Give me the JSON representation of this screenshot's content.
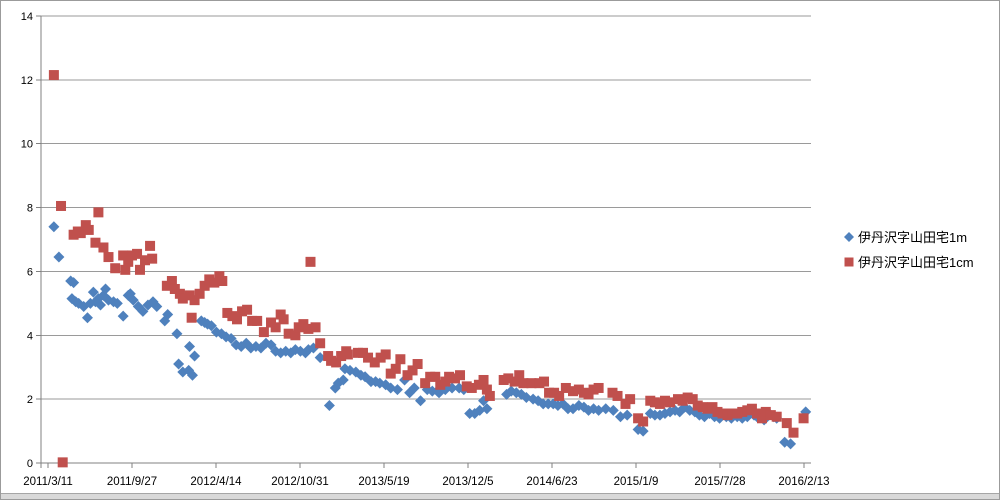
{
  "chart_data": {
    "type": "scatter",
    "title": "",
    "x_axis": {
      "unit": "date",
      "tick_interval_days": 200,
      "tick_labels": [
        "2011/3/11",
        "2011/9/27",
        "2012/4/14",
        "2012/10/31",
        "2013/5/19",
        "2013/12/5",
        "2014/6/23",
        "2015/1/9",
        "2015/7/28",
        "2016/2/13"
      ]
    },
    "y_axis": {
      "min": 0,
      "max": 14,
      "step": 2,
      "tick_labels": [
        "0",
        "2",
        "4",
        "6",
        "8",
        "10",
        "12",
        "14"
      ]
    },
    "grid": true,
    "gridline_color": "#9a9a9a",
    "axis_color": "#808080",
    "text_color": "#000000",
    "background": "#ffffff",
    "legend": {
      "position": "right"
    },
    "series": [
      {
        "name": "伊丹沢字山田宅1m",
        "marker": "diamond",
        "color": "#4F81BD",
        "points": [
          [
            14,
            7.4
          ],
          [
            26,
            6.45
          ],
          [
            54,
            5.7
          ],
          [
            57,
            5.15
          ],
          [
            61,
            5.65
          ],
          [
            66,
            5.05
          ],
          [
            73,
            5.0
          ],
          [
            85,
            4.9
          ],
          [
            94,
            4.55
          ],
          [
            101,
            5.0
          ],
          [
            108,
            5.35
          ],
          [
            113,
            5.05
          ],
          [
            120,
            5.15
          ],
          [
            125,
            4.95
          ],
          [
            132,
            5.25
          ],
          [
            137,
            5.45
          ],
          [
            144,
            5.1
          ],
          [
            156,
            5.05
          ],
          [
            165,
            5.0
          ],
          [
            179,
            4.6
          ],
          [
            191,
            5.25
          ],
          [
            196,
            5.3
          ],
          [
            203,
            5.1
          ],
          [
            215,
            4.9
          ],
          [
            226,
            4.75
          ],
          [
            238,
            4.95
          ],
          [
            250,
            5.05
          ],
          [
            259,
            4.9
          ],
          [
            278,
            4.45
          ],
          [
            285,
            4.65
          ],
          [
            307,
            4.05
          ],
          [
            311,
            3.1
          ],
          [
            321,
            2.85
          ],
          [
            335,
            2.9
          ],
          [
            337,
            3.65
          ],
          [
            344,
            2.75
          ],
          [
            349,
            3.35
          ],
          [
            365,
            4.45
          ],
          [
            373,
            4.4
          ],
          [
            380,
            4.35
          ],
          [
            389,
            4.3
          ],
          [
            401,
            4.1
          ],
          [
            413,
            4.05
          ],
          [
            424,
            3.95
          ],
          [
            436,
            3.9
          ],
          [
            448,
            3.7
          ],
          [
            460,
            3.65
          ],
          [
            472,
            3.75
          ],
          [
            483,
            3.6
          ],
          [
            495,
            3.65
          ],
          [
            507,
            3.6
          ],
          [
            519,
            3.75
          ],
          [
            531,
            3.7
          ],
          [
            542,
            3.5
          ],
          [
            554,
            3.45
          ],
          [
            566,
            3.5
          ],
          [
            578,
            3.45
          ],
          [
            589,
            3.55
          ],
          [
            601,
            3.5
          ],
          [
            613,
            3.45
          ],
          [
            620,
            3.55
          ],
          [
            632,
            3.6
          ],
          [
            648,
            3.3
          ],
          [
            670,
            1.8
          ],
          [
            684,
            2.35
          ],
          [
            691,
            2.5
          ],
          [
            703,
            2.6
          ],
          [
            707,
            2.95
          ],
          [
            719,
            2.9
          ],
          [
            733,
            2.85
          ],
          [
            745,
            2.75
          ],
          [
            755,
            2.7
          ],
          [
            769,
            2.55
          ],
          [
            780,
            2.55
          ],
          [
            790,
            2.5
          ],
          [
            804,
            2.45
          ],
          [
            816,
            2.35
          ],
          [
            832,
            2.3
          ],
          [
            849,
            2.6
          ],
          [
            861,
            2.2
          ],
          [
            872,
            2.35
          ],
          [
            887,
            1.95
          ],
          [
            903,
            2.3
          ],
          [
            915,
            2.25
          ],
          [
            927,
            2.25
          ],
          [
            931,
            2.2
          ],
          [
            946,
            2.3
          ],
          [
            962,
            2.35
          ],
          [
            979,
            2.35
          ],
          [
            990,
            2.3
          ],
          [
            1004,
            1.55
          ],
          [
            1016,
            1.55
          ],
          [
            1028,
            1.65
          ],
          [
            1037,
            1.95
          ],
          [
            1045,
            1.7
          ],
          [
            1092,
            2.15
          ],
          [
            1103,
            2.25
          ],
          [
            1115,
            2.2
          ],
          [
            1127,
            2.15
          ],
          [
            1139,
            2.05
          ],
          [
            1155,
            2.0
          ],
          [
            1167,
            1.95
          ],
          [
            1179,
            1.85
          ],
          [
            1191,
            1.85
          ],
          [
            1203,
            1.85
          ],
          [
            1214,
            1.8
          ],
          [
            1226,
            1.85
          ],
          [
            1238,
            1.7
          ],
          [
            1250,
            1.7
          ],
          [
            1264,
            1.8
          ],
          [
            1276,
            1.75
          ],
          [
            1287,
            1.65
          ],
          [
            1299,
            1.7
          ],
          [
            1311,
            1.65
          ],
          [
            1328,
            1.7
          ],
          [
            1346,
            1.65
          ],
          [
            1363,
            1.45
          ],
          [
            1379,
            1.5
          ],
          [
            1405,
            1.05
          ],
          [
            1417,
            1.0
          ],
          [
            1434,
            1.55
          ],
          [
            1445,
            1.5
          ],
          [
            1457,
            1.5
          ],
          [
            1469,
            1.55
          ],
          [
            1481,
            1.6
          ],
          [
            1493,
            1.65
          ],
          [
            1504,
            1.6
          ],
          [
            1516,
            1.75
          ],
          [
            1528,
            1.65
          ],
          [
            1540,
            1.6
          ],
          [
            1551,
            1.5
          ],
          [
            1563,
            1.45
          ],
          [
            1575,
            1.55
          ],
          [
            1587,
            1.45
          ],
          [
            1599,
            1.4
          ],
          [
            1615,
            1.45
          ],
          [
            1627,
            1.4
          ],
          [
            1641,
            1.45
          ],
          [
            1653,
            1.4
          ],
          [
            1665,
            1.45
          ],
          [
            1681,
            1.5
          ],
          [
            1688,
            1.45
          ],
          [
            1705,
            1.35
          ],
          [
            1717,
            1.55
          ],
          [
            1728,
            1.45
          ],
          [
            1735,
            1.4
          ],
          [
            1754,
            0.65
          ],
          [
            1768,
            0.6
          ],
          [
            1804,
            1.6
          ]
        ]
      },
      {
        "name": "伊丹沢字山田宅1cm",
        "marker": "square",
        "color": "#C0504D",
        "points": [
          [
            14,
            12.15
          ],
          [
            31,
            8.05
          ],
          [
            35,
            0.02
          ],
          [
            61,
            7.15
          ],
          [
            71,
            7.25
          ],
          [
            78,
            7.2
          ],
          [
            90,
            7.45
          ],
          [
            97,
            7.3
          ],
          [
            113,
            6.9
          ],
          [
            120,
            7.85
          ],
          [
            132,
            6.75
          ],
          [
            144,
            6.45
          ],
          [
            160,
            6.1
          ],
          [
            179,
            6.5
          ],
          [
            184,
            6.05
          ],
          [
            191,
            6.3
          ],
          [
            200,
            6.5
          ],
          [
            212,
            6.55
          ],
          [
            219,
            6.05
          ],
          [
            231,
            6.35
          ],
          [
            243,
            6.8
          ],
          [
            248,
            6.4
          ],
          [
            283,
            5.55
          ],
          [
            295,
            5.7
          ],
          [
            302,
            5.45
          ],
          [
            314,
            5.3
          ],
          [
            321,
            5.15
          ],
          [
            337,
            5.25
          ],
          [
            342,
            4.55
          ],
          [
            349,
            5.1
          ],
          [
            361,
            5.3
          ],
          [
            373,
            5.55
          ],
          [
            384,
            5.75
          ],
          [
            396,
            5.65
          ],
          [
            408,
            5.85
          ],
          [
            415,
            5.7
          ],
          [
            427,
            4.7
          ],
          [
            439,
            4.6
          ],
          [
            450,
            4.5
          ],
          [
            462,
            4.75
          ],
          [
            474,
            4.8
          ],
          [
            486,
            4.45
          ],
          [
            498,
            4.45
          ],
          [
            514,
            4.1
          ],
          [
            531,
            4.4
          ],
          [
            542,
            4.25
          ],
          [
            554,
            4.65
          ],
          [
            561,
            4.5
          ],
          [
            573,
            4.05
          ],
          [
            589,
            4.0
          ],
          [
            597,
            4.25
          ],
          [
            608,
            4.35
          ],
          [
            620,
            4.2
          ],
          [
            625,
            6.3
          ],
          [
            637,
            4.25
          ],
          [
            648,
            3.75
          ],
          [
            667,
            3.35
          ],
          [
            674,
            3.2
          ],
          [
            686,
            3.15
          ],
          [
            698,
            3.35
          ],
          [
            710,
            3.5
          ],
          [
            714,
            3.4
          ],
          [
            738,
            3.45
          ],
          [
            750,
            3.45
          ],
          [
            762,
            3.3
          ],
          [
            778,
            3.15
          ],
          [
            792,
            3.3
          ],
          [
            804,
            3.4
          ],
          [
            816,
            2.8
          ],
          [
            828,
            2.95
          ],
          [
            839,
            3.25
          ],
          [
            856,
            2.75
          ],
          [
            868,
            2.9
          ],
          [
            880,
            3.1
          ],
          [
            898,
            2.5
          ],
          [
            910,
            2.7
          ],
          [
            922,
            2.7
          ],
          [
            934,
            2.45
          ],
          [
            946,
            2.55
          ],
          [
            955,
            2.7
          ],
          [
            969,
            2.65
          ],
          [
            981,
            2.75
          ],
          [
            997,
            2.4
          ],
          [
            1009,
            2.35
          ],
          [
            1026,
            2.45
          ],
          [
            1037,
            2.6
          ],
          [
            1045,
            2.3
          ],
          [
            1052,
            2.1
          ],
          [
            1085,
            2.6
          ],
          [
            1096,
            2.65
          ],
          [
            1111,
            2.55
          ],
          [
            1122,
            2.75
          ],
          [
            1132,
            2.5
          ],
          [
            1151,
            2.5
          ],
          [
            1170,
            2.5
          ],
          [
            1181,
            2.55
          ],
          [
            1193,
            2.2
          ],
          [
            1205,
            2.2
          ],
          [
            1217,
            2.1
          ],
          [
            1233,
            2.35
          ],
          [
            1250,
            2.25
          ],
          [
            1264,
            2.3
          ],
          [
            1276,
            2.2
          ],
          [
            1287,
            2.15
          ],
          [
            1299,
            2.3
          ],
          [
            1311,
            2.35
          ],
          [
            1344,
            2.2
          ],
          [
            1356,
            2.1
          ],
          [
            1375,
            1.85
          ],
          [
            1386,
            2.0
          ],
          [
            1405,
            1.4
          ],
          [
            1417,
            1.3
          ],
          [
            1434,
            1.95
          ],
          [
            1445,
            1.9
          ],
          [
            1457,
            1.85
          ],
          [
            1469,
            1.95
          ],
          [
            1481,
            1.9
          ],
          [
            1500,
            2.0
          ],
          [
            1511,
            1.95
          ],
          [
            1523,
            2.05
          ],
          [
            1535,
            2.0
          ],
          [
            1547,
            1.8
          ],
          [
            1559,
            1.75
          ],
          [
            1570,
            1.7
          ],
          [
            1582,
            1.75
          ],
          [
            1594,
            1.6
          ],
          [
            1606,
            1.55
          ],
          [
            1618,
            1.5
          ],
          [
            1629,
            1.55
          ],
          [
            1641,
            1.55
          ],
          [
            1653,
            1.6
          ],
          [
            1665,
            1.65
          ],
          [
            1676,
            1.7
          ],
          [
            1688,
            1.55
          ],
          [
            1700,
            1.4
          ],
          [
            1709,
            1.6
          ],
          [
            1721,
            1.5
          ],
          [
            1735,
            1.45
          ],
          [
            1759,
            1.25
          ],
          [
            1775,
            0.95
          ],
          [
            1799,
            1.4
          ]
        ]
      }
    ]
  }
}
